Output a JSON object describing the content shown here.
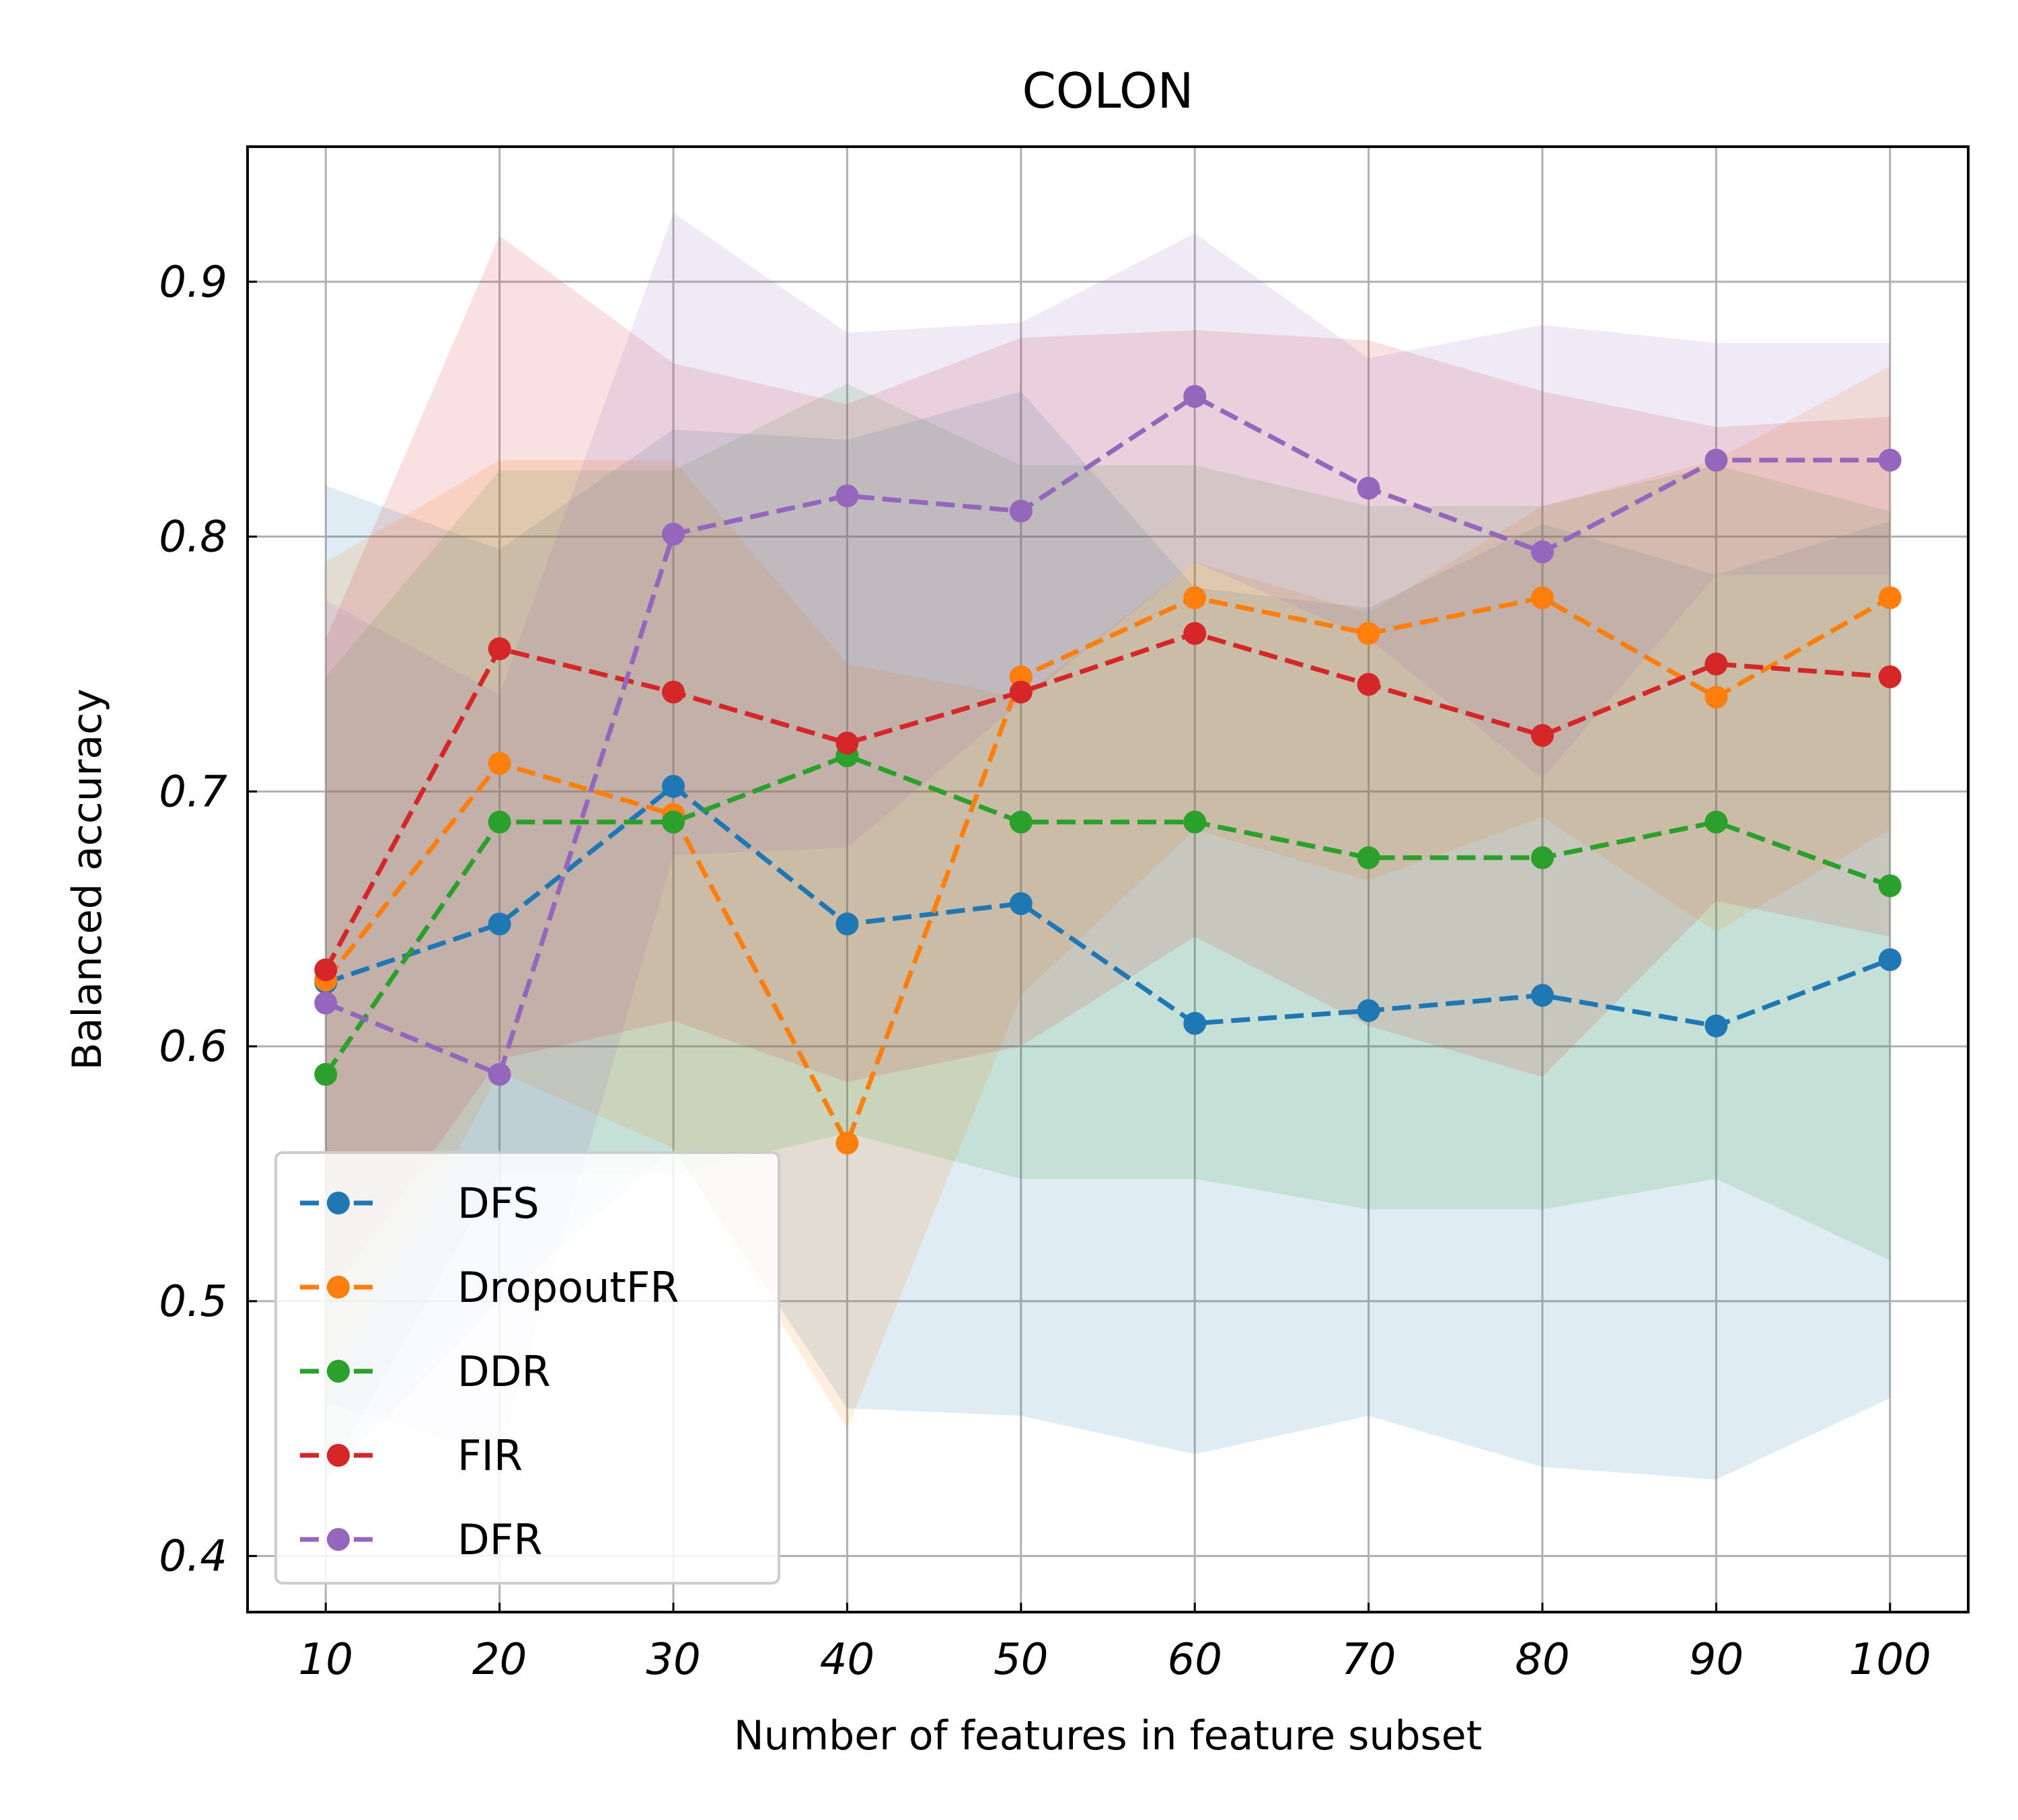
{
  "chart_data": {
    "type": "line",
    "title": "COLON",
    "xlabel": "Number of features in feature subset",
    "ylabel": "Balanced accuracy",
    "x": [
      10,
      20,
      30,
      40,
      50,
      60,
      70,
      80,
      90,
      100
    ],
    "xlim": [
      5.5,
      104.5
    ],
    "ylim": [
      0.378,
      0.953
    ],
    "xticks": [
      "10",
      "20",
      "30",
      "40",
      "50",
      "60",
      "70",
      "80",
      "90",
      "100"
    ],
    "yticks": [
      "0.4",
      "0.5",
      "0.6",
      "0.7",
      "0.8",
      "0.9"
    ],
    "grid": true,
    "legend_position": "lower-left",
    "series": [
      {
        "name": "DFS",
        "color": "#1f77b4",
        "values": [
          0.625,
          0.648,
          0.702,
          0.648,
          0.656,
          0.609,
          0.614,
          0.62,
          0.608,
          0.634
        ],
        "lower": [
          0.43,
          0.5,
          0.56,
          0.458,
          0.455,
          0.44,
          0.455,
          0.435,
          0.43,
          0.462
        ],
        "upper": [
          0.82,
          0.795,
          0.842,
          0.838,
          0.857,
          0.78,
          0.772,
          0.805,
          0.785,
          0.806
        ]
      },
      {
        "name": "DropoutFR",
        "color": "#ff7f0e",
        "values": [
          0.626,
          0.711,
          0.691,
          0.562,
          0.745,
          0.776,
          0.762,
          0.776,
          0.737,
          0.776
        ],
        "lower": [
          0.46,
          0.59,
          0.56,
          0.45,
          0.62,
          0.685,
          0.665,
          0.69,
          0.645,
          0.685
        ],
        "upper": [
          0.79,
          0.83,
          0.83,
          0.75,
          0.737,
          0.79,
          0.77,
          0.812,
          0.83,
          0.867
        ]
      },
      {
        "name": "DDR",
        "color": "#2ca02c",
        "values": [
          0.589,
          0.688,
          0.688,
          0.714,
          0.688,
          0.688,
          0.674,
          0.674,
          0.688,
          0.663
        ],
        "lower": [
          0.43,
          0.55,
          0.55,
          0.566,
          0.548,
          0.548,
          0.536,
          0.536,
          0.548,
          0.516
        ],
        "upper": [
          0.745,
          0.826,
          0.826,
          0.86,
          0.828,
          0.828,
          0.812,
          0.812,
          0.828,
          0.81
        ]
      },
      {
        "name": "FIR",
        "color": "#d62728",
        "values": [
          0.63,
          0.756,
          0.739,
          0.719,
          0.739,
          0.762,
          0.742,
          0.722,
          0.75,
          0.745
        ],
        "lower": [
          0.5,
          0.595,
          0.61,
          0.586,
          0.6,
          0.643,
          0.608,
          0.588,
          0.657,
          0.643
        ],
        "upper": [
          0.76,
          0.918,
          0.868,
          0.852,
          0.878,
          0.881,
          0.877,
          0.857,
          0.843,
          0.847
        ]
      },
      {
        "name": "DFR",
        "color": "#9467bd",
        "values": [
          0.617,
          0.589,
          0.801,
          0.816,
          0.81,
          0.855,
          0.819,
          0.794,
          0.83,
          0.83
        ],
        "lower": [
          0.46,
          0.44,
          0.675,
          0.678,
          0.735,
          0.79,
          0.76,
          0.705,
          0.785,
          0.785
        ],
        "upper": [
          0.775,
          0.738,
          0.927,
          0.88,
          0.884,
          0.919,
          0.87,
          0.883,
          0.876,
          0.876
        ]
      }
    ]
  }
}
